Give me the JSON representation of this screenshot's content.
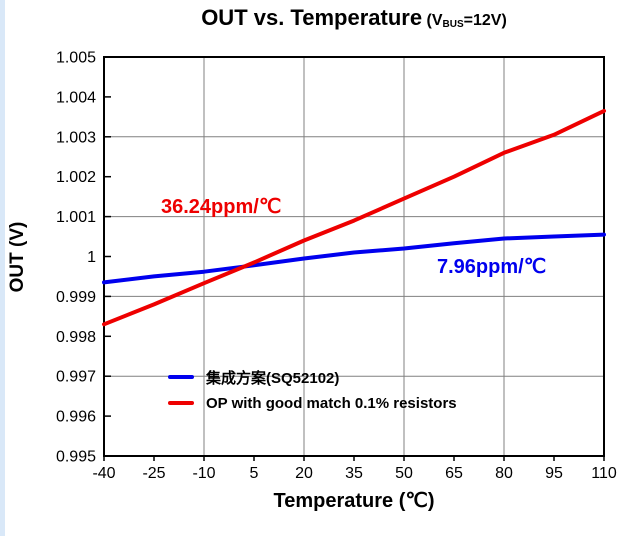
{
  "page": {
    "edge_stripe_color": "#d9e8f8",
    "background": "#ffffff"
  },
  "chart_data": {
    "type": "line",
    "title": "OUT vs. Temperature (VBUS=12V)",
    "title_parts": {
      "main": "OUT vs. Temperature",
      "cond_open": "(V",
      "cond_sub": "BUS",
      "cond_close": "=12V)"
    },
    "xlabel": "Temperature (℃)",
    "ylabel": "OUT (V)",
    "xlim": [
      -40,
      110
    ],
    "ylim": [
      0.995,
      1.005
    ],
    "x_ticks": [
      -40,
      -25,
      -10,
      5,
      20,
      35,
      50,
      65,
      80,
      95,
      110
    ],
    "x_tick_labels": [
      "-40",
      "-25",
      "-10",
      "5",
      "20",
      "35",
      "50",
      "65",
      "80",
      "95",
      "110"
    ],
    "y_ticks": [
      0.995,
      0.996,
      0.997,
      0.998,
      0.999,
      1.0,
      1.001,
      1.002,
      1.003,
      1.004,
      1.005
    ],
    "y_tick_labels": [
      "0.995",
      "0.996",
      "0.997",
      "0.998",
      "0.999",
      "1",
      "1.001",
      "1.002",
      "1.003",
      "1.004",
      "1.005"
    ],
    "x_gridlines": [
      -10,
      20,
      50,
      80
    ],
    "y_gridlines": [
      0.997,
      0.999,
      1.001,
      1.003
    ],
    "grid_on": true,
    "grid_color": "#808080",
    "axis_color": "#000000",
    "legend_position": "inside bottom-left",
    "series": [
      {
        "name": "集成方案(SQ52102)",
        "color": "#0000ee",
        "slope_label": "7.96ppm/℃",
        "x": [
          -40,
          -25,
          -10,
          5,
          20,
          35,
          50,
          65,
          80,
          95,
          110
        ],
        "values": [
          0.99935,
          0.9995,
          0.99962,
          0.99978,
          0.99995,
          1.0001,
          1.0002,
          1.00033,
          1.00045,
          1.0005,
          1.00055
        ]
      },
      {
        "name": "OP with good match 0.1% resistors",
        "color": "#ee0000",
        "slope_label": "36.24ppm/℃",
        "x": [
          -40,
          -25,
          -10,
          5,
          20,
          35,
          50,
          65,
          80,
          95,
          110
        ],
        "values": [
          0.9983,
          0.9988,
          0.99933,
          0.99985,
          1.0004,
          1.0009,
          1.00145,
          1.002,
          1.0026,
          1.00305,
          1.00365
        ]
      }
    ]
  }
}
